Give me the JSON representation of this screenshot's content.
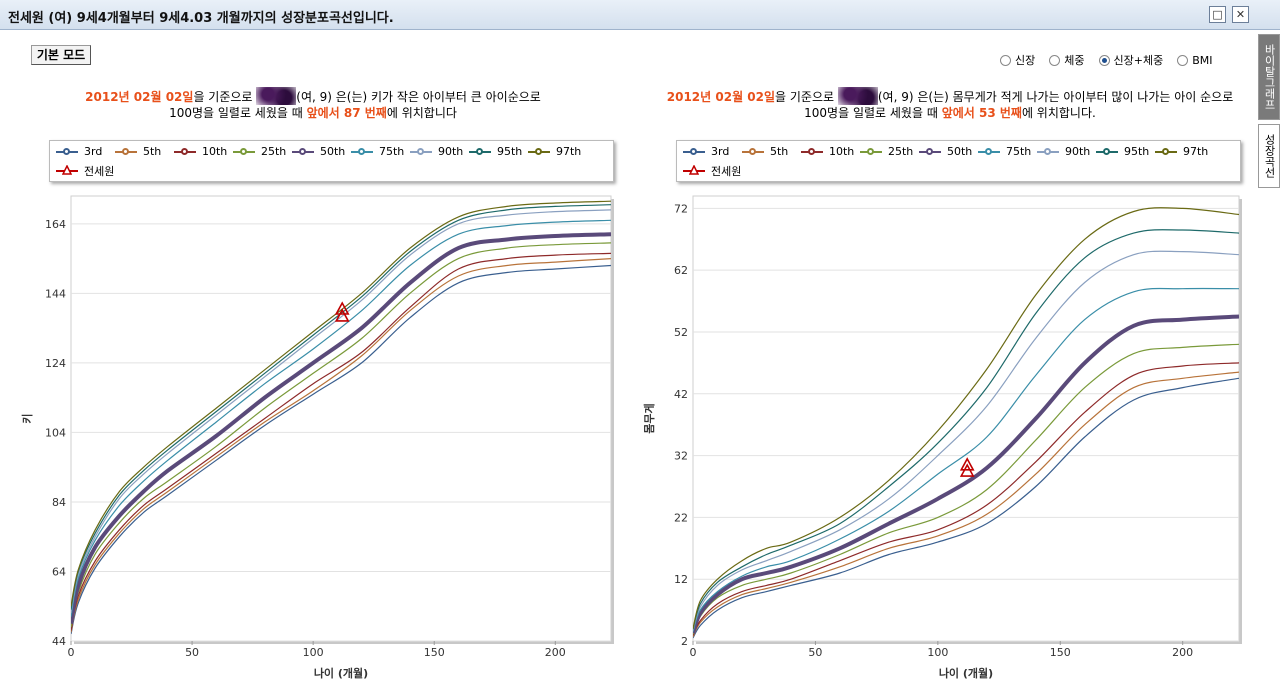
{
  "window": {
    "title": "전세원 (여) 9세4개월부터 9세4.03 개월까지의 성장분포곡선입니다.",
    "restore_icon": "restore-icon",
    "close_icon": "close-icon",
    "close_symbol": "✕",
    "restore_symbol": "□"
  },
  "mode_button": "기본 모드",
  "radios": [
    {
      "label": "신장",
      "checked": false
    },
    {
      "label": "체중",
      "checked": false
    },
    {
      "label": "신장+체중",
      "checked": true
    },
    {
      "label": "BMI",
      "checked": false
    }
  ],
  "side_tabs": [
    "바이탈그래프",
    "성장곡선"
  ],
  "left_summary": {
    "date": "2012년 02월 02일",
    "t1": "을 기준으로 ",
    "t2": "(여, 9) 은(는) 키가 작은 아이부터 큰 아이순으로",
    "t3": "100명을 일렬로 세웠을 때 ",
    "rank": "앞에서 87 번째",
    "t4": "에 위치합니다"
  },
  "right_summary": {
    "date": "2012년 02월 02일",
    "t1": "을 기준으로 ",
    "t2": "(여, 9) 은(는) 몸무게가 적게 나가는 아이부터 많이 나가는 아이 순으로",
    "t3": "100명을 일렬로 세웠을 때 ",
    "rank": "앞에서 53 번째",
    "t4": "에 위치합니다."
  },
  "legend": {
    "percentiles": [
      "3rd",
      "5th",
      "10th",
      "25th",
      "50th",
      "75th",
      "90th",
      "95th",
      "97th"
    ],
    "colors": [
      "#3a5f8f",
      "#b8733a",
      "#8e2a2a",
      "#7a9a3a",
      "#5a4a7a",
      "#3a8ea8",
      "#8aa0c0",
      "#1e6a6a",
      "#6a6a14"
    ],
    "patient_label": "전세원",
    "patient_color": "#c00000"
  },
  "chart_data": [
    {
      "type": "line",
      "xlabel": "나이 (개월)",
      "ylabel": "키",
      "xlim": [
        0,
        223
      ],
      "ylim": [
        44,
        172
      ],
      "xticks": [
        "0",
        "50",
        "100",
        "150",
        "200"
      ],
      "yticks": [
        "44",
        "64",
        "84",
        "104",
        "124",
        "144",
        "164"
      ],
      "x": [
        0,
        3,
        10,
        20,
        30,
        40,
        60,
        80,
        100,
        120,
        140,
        160,
        180,
        200,
        223
      ],
      "series": [
        {
          "name": "3rd",
          "values": [
            46,
            55,
            65,
            74,
            81,
            86,
            96,
            106,
            115,
            124,
            137,
            147,
            150,
            151,
            152
          ]
        },
        {
          "name": "5th",
          "values": [
            46.5,
            56,
            66,
            75,
            82,
            87,
            97,
            107,
            116,
            126,
            139,
            149,
            152,
            153,
            154
          ]
        },
        {
          "name": "10th",
          "values": [
            47,
            57,
            67,
            76,
            83,
            88,
            98,
            108,
            118,
            127,
            140,
            151,
            154,
            155,
            155.5
          ]
        },
        {
          "name": "25th",
          "values": [
            48,
            58,
            69,
            78,
            85,
            90,
            100,
            111,
            121,
            131,
            144,
            154,
            157,
            158,
            158.5
          ]
        },
        {
          "name": "50th",
          "values": [
            49,
            60,
            71,
            80,
            87,
            93,
            103,
            114,
            124,
            134,
            147,
            157,
            159.5,
            160.5,
            161
          ]
        },
        {
          "name": "75th",
          "values": [
            51,
            62,
            73,
            83,
            90,
            96,
            107,
            118,
            128,
            139,
            152,
            161,
            163.5,
            164.5,
            165
          ]
        },
        {
          "name": "90th",
          "values": [
            52,
            63,
            74,
            85,
            92,
            98,
            109,
            120,
            131,
            142,
            155,
            164,
            166.5,
            167.5,
            168
          ]
        },
        {
          "name": "95th",
          "values": [
            53,
            64,
            75,
            86,
            93,
            99,
            110,
            121,
            132,
            143,
            156,
            165,
            168,
            169,
            169.5
          ]
        },
        {
          "name": "97th",
          "values": [
            54,
            64.5,
            76,
            87,
            94,
            100,
            111,
            122,
            133,
            144,
            157,
            166,
            169,
            170,
            170.5
          ]
        }
      ],
      "patient": [
        {
          "x": 112,
          "y": 139.5
        },
        {
          "x": 112,
          "y": 137.5
        }
      ]
    },
    {
      "type": "line",
      "xlabel": "나이 (개월)",
      "ylabel": "몸무게",
      "xlim": [
        0,
        223
      ],
      "ylim": [
        2,
        74
      ],
      "xticks": [
        "0",
        "50",
        "100",
        "150",
        "200"
      ],
      "yticks": [
        "2",
        "12",
        "22",
        "32",
        "42",
        "52",
        "62",
        "72"
      ],
      "x": [
        0,
        3,
        10,
        20,
        30,
        40,
        60,
        80,
        100,
        120,
        140,
        160,
        180,
        200,
        223
      ],
      "series": [
        {
          "name": "3rd",
          "values": [
            2.5,
            4.5,
            7,
            9,
            10,
            11,
            13,
            16,
            18,
            21,
            27,
            35,
            41,
            43,
            44.5
          ]
        },
        {
          "name": "5th",
          "values": [
            2.7,
            5,
            7.5,
            9.5,
            10.5,
            11.5,
            14,
            17,
            19,
            22.5,
            29,
            37,
            43,
            44.5,
            45.5
          ]
        },
        {
          "name": "10th",
          "values": [
            2.9,
            5.3,
            8,
            10,
            11,
            12,
            15,
            18,
            20,
            24,
            31,
            39,
            45,
            46.5,
            47
          ]
        },
        {
          "name": "25th",
          "values": [
            3.1,
            6,
            9,
            11,
            12,
            13,
            16,
            19.5,
            22,
            26.5,
            34.5,
            43,
            48.5,
            49.5,
            50
          ]
        },
        {
          "name": "50th",
          "values": [
            3.3,
            6.5,
            9.5,
            12,
            13,
            14,
            17,
            21,
            25,
            30,
            38,
            47,
            53,
            54,
            54.5
          ]
        },
        {
          "name": "75th",
          "values": [
            3.5,
            7,
            10,
            12.5,
            14,
            15,
            18.5,
            23,
            29,
            35,
            45,
            54,
            58.5,
            59,
            59
          ]
        },
        {
          "name": "90th",
          "values": [
            3.7,
            7.5,
            11,
            13.5,
            15,
            16.5,
            20,
            25,
            32,
            40,
            51,
            60,
            64.5,
            65,
            64.5
          ]
        },
        {
          "name": "95th",
          "values": [
            3.9,
            8,
            11.5,
            14,
            16,
            17.5,
            21,
            27,
            34,
            43,
            55,
            64,
            68,
            68.5,
            68
          ]
        },
        {
          "name": "97th",
          "values": [
            4,
            8.5,
            12,
            15,
            17,
            18,
            22,
            28,
            36,
            46,
            58,
            67,
            71.5,
            72,
            71
          ]
        }
      ],
      "patient": [
        {
          "x": 112,
          "y": 30.5
        },
        {
          "x": 112,
          "y": 29.5
        }
      ]
    }
  ]
}
